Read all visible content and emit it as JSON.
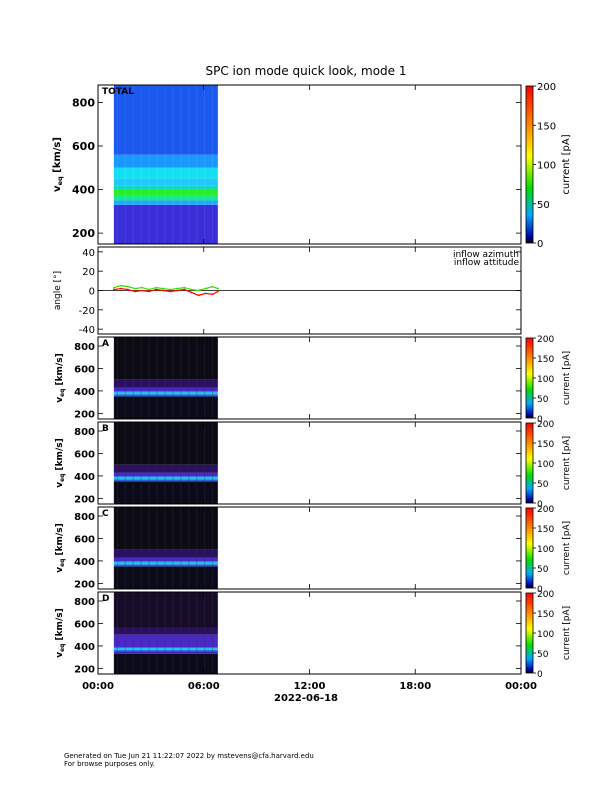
{
  "title": "SPC ion mode quick look, mode 1",
  "footer": {
    "line1": "Generated on Tue Jun 21 11:22:07 2022 by mstevens@cfa.harvard.edu",
    "line2": "For browse purposes only."
  },
  "x_axis": {
    "range_hours": [
      0,
      24
    ],
    "ticks_hours": [
      0,
      6,
      12,
      18,
      24
    ],
    "tick_labels": [
      "00:00",
      "06:00",
      "12:00",
      "18:00",
      "00:00"
    ],
    "date_label": "2022-06-18"
  },
  "data_coverage_hours": [
    0.9,
    6.8
  ],
  "colorbar": {
    "label": "current [pA]",
    "range": [
      0,
      200
    ],
    "ticks": [
      0,
      50,
      100,
      150,
      200
    ],
    "colors": [
      "#000000",
      "#0000aa",
      "#00aaff",
      "#00dd00",
      "#ffff00",
      "#ff8800",
      "#ff0000"
    ]
  },
  "chart_data": [
    {
      "panel": "TOTAL",
      "type": "heatmap",
      "label": "TOTAL",
      "ylabel": "v_eq [km/s]",
      "ylim": [
        150,
        880
      ],
      "yticks": [
        200,
        400,
        600,
        800
      ],
      "colorbar_ticks": [
        0,
        50,
        100,
        150,
        200
      ],
      "bands": [
        {
          "vmin": 150,
          "vmax": 330,
          "color": "#3a2ed8"
        },
        {
          "vmin": 330,
          "vmax": 350,
          "color": "#20a8ff"
        },
        {
          "vmin": 350,
          "vmax": 375,
          "color": "#18e890"
        },
        {
          "vmin": 375,
          "vmax": 400,
          "color": "#28ee28"
        },
        {
          "vmin": 400,
          "vmax": 420,
          "color": "#10d8c0"
        },
        {
          "vmin": 420,
          "vmax": 450,
          "color": "#20c8ff"
        },
        {
          "vmin": 450,
          "vmax": 500,
          "color": "#12e0f2"
        },
        {
          "vmin": 500,
          "vmax": 560,
          "color": "#1a98ff"
        },
        {
          "vmin": 560,
          "vmax": 880,
          "color": "#1a58ee"
        }
      ]
    },
    {
      "panel": "angle",
      "type": "line",
      "ylabel": "angle [°]",
      "ylim": [
        -45,
        45
      ],
      "yticks": [
        -40,
        -20,
        0,
        20,
        40
      ],
      "series": [
        {
          "name": "inflow azimuth",
          "color": "#ff0000",
          "x": [
            0.9,
            1.3,
            1.7,
            2.1,
            2.5,
            2.9,
            3.3,
            3.7,
            4.1,
            4.5,
            4.9,
            5.3,
            5.7,
            6.1,
            6.5,
            6.8
          ],
          "y": [
            1,
            2,
            1,
            -1,
            0,
            -1,
            1,
            0,
            -1,
            0,
            1,
            -2,
            -5,
            -3,
            -4,
            -1
          ]
        },
        {
          "name": "inflow attitude",
          "color": "#33dd00",
          "x": [
            0.9,
            1.3,
            1.7,
            2.1,
            2.5,
            2.9,
            3.3,
            3.7,
            4.1,
            4.5,
            4.9,
            5.3,
            5.7,
            6.1,
            6.5,
            6.8
          ],
          "y": [
            3,
            5,
            4,
            2,
            3,
            1,
            3,
            2,
            1,
            2,
            3,
            1,
            0,
            2,
            4,
            2
          ]
        }
      ]
    },
    {
      "panel": "A",
      "type": "heatmap",
      "label": "A",
      "ylabel": "v_eq [km/s]",
      "ylim": [
        150,
        880
      ],
      "yticks": [
        200,
        400,
        600,
        800
      ],
      "colorbar_ticks": [
        0,
        50,
        100,
        150,
        200
      ],
      "bands": [
        {
          "vmin": 150,
          "vmax": 350,
          "color": "#0a0a18"
        },
        {
          "vmin": 350,
          "vmax": 370,
          "color": "#2a60d8"
        },
        {
          "vmin": 370,
          "vmax": 395,
          "color": "#22c0f0"
        },
        {
          "vmin": 395,
          "vmax": 430,
          "color": "#4a28c8"
        },
        {
          "vmin": 430,
          "vmax": 500,
          "color": "#2a1060"
        },
        {
          "vmin": 500,
          "vmax": 880,
          "color": "#0c0a12"
        }
      ]
    },
    {
      "panel": "B",
      "type": "heatmap",
      "label": "B",
      "ylabel": "v_eq [km/s]",
      "ylim": [
        150,
        880
      ],
      "yticks": [
        200,
        400,
        600,
        800
      ],
      "colorbar_ticks": [
        0,
        50,
        100,
        150,
        200
      ],
      "bands": [
        {
          "vmin": 150,
          "vmax": 350,
          "color": "#0a0a18"
        },
        {
          "vmin": 350,
          "vmax": 370,
          "color": "#2a60d8"
        },
        {
          "vmin": 370,
          "vmax": 395,
          "color": "#22c0f0"
        },
        {
          "vmin": 395,
          "vmax": 430,
          "color": "#4a28c8"
        },
        {
          "vmin": 430,
          "vmax": 500,
          "color": "#2a1060"
        },
        {
          "vmin": 500,
          "vmax": 880,
          "color": "#0c0a12"
        }
      ]
    },
    {
      "panel": "C",
      "type": "heatmap",
      "label": "C",
      "ylabel": "v_eq [km/s]",
      "ylim": [
        150,
        880
      ],
      "yticks": [
        200,
        400,
        600,
        800
      ],
      "colorbar_ticks": [
        0,
        50,
        100,
        150,
        200
      ],
      "bands": [
        {
          "vmin": 150,
          "vmax": 350,
          "color": "#0a0a18"
        },
        {
          "vmin": 350,
          "vmax": 370,
          "color": "#2a60d8"
        },
        {
          "vmin": 370,
          "vmax": 395,
          "color": "#22c0f0"
        },
        {
          "vmin": 395,
          "vmax": 430,
          "color": "#4a28c8"
        },
        {
          "vmin": 430,
          "vmax": 500,
          "color": "#2a1060"
        },
        {
          "vmin": 500,
          "vmax": 880,
          "color": "#0c0a12"
        }
      ]
    },
    {
      "panel": "D",
      "type": "heatmap",
      "label": "D",
      "ylabel": "v_eq [km/s]",
      "ylim": [
        150,
        880
      ],
      "yticks": [
        200,
        400,
        600,
        800
      ],
      "colorbar_ticks": [
        0,
        50,
        100,
        150,
        200
      ],
      "bands": [
        {
          "vmin": 150,
          "vmax": 330,
          "color": "#0a0a18"
        },
        {
          "vmin": 330,
          "vmax": 350,
          "color": "#3a20c0"
        },
        {
          "vmin": 350,
          "vmax": 365,
          "color": "#2a70e0"
        },
        {
          "vmin": 365,
          "vmax": 385,
          "color": "#22c0f0"
        },
        {
          "vmin": 385,
          "vmax": 500,
          "color": "#4a28c8"
        },
        {
          "vmin": 500,
          "vmax": 560,
          "color": "#2a1060"
        },
        {
          "vmin": 560,
          "vmax": 880,
          "color": "#160c28"
        }
      ]
    }
  ]
}
